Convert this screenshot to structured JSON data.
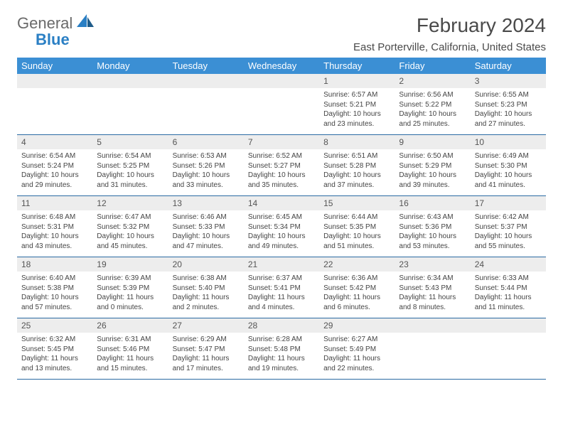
{
  "logo": {
    "text1": "General",
    "text2": "Blue"
  },
  "title": "February 2024",
  "location": "East Porterville, California, United States",
  "headerColor": "#3b8fd4",
  "dayNumBg": "#ededed",
  "borderColor": "#2b6aa3",
  "weekdays": [
    "Sunday",
    "Monday",
    "Tuesday",
    "Wednesday",
    "Thursday",
    "Friday",
    "Saturday"
  ],
  "weeks": [
    [
      null,
      null,
      null,
      null,
      {
        "n": "1",
        "sr": "6:57 AM",
        "ss": "5:21 PM",
        "dl": "10 hours and 23 minutes."
      },
      {
        "n": "2",
        "sr": "6:56 AM",
        "ss": "5:22 PM",
        "dl": "10 hours and 25 minutes."
      },
      {
        "n": "3",
        "sr": "6:55 AM",
        "ss": "5:23 PM",
        "dl": "10 hours and 27 minutes."
      }
    ],
    [
      {
        "n": "4",
        "sr": "6:54 AM",
        "ss": "5:24 PM",
        "dl": "10 hours and 29 minutes."
      },
      {
        "n": "5",
        "sr": "6:54 AM",
        "ss": "5:25 PM",
        "dl": "10 hours and 31 minutes."
      },
      {
        "n": "6",
        "sr": "6:53 AM",
        "ss": "5:26 PM",
        "dl": "10 hours and 33 minutes."
      },
      {
        "n": "7",
        "sr": "6:52 AM",
        "ss": "5:27 PM",
        "dl": "10 hours and 35 minutes."
      },
      {
        "n": "8",
        "sr": "6:51 AM",
        "ss": "5:28 PM",
        "dl": "10 hours and 37 minutes."
      },
      {
        "n": "9",
        "sr": "6:50 AM",
        "ss": "5:29 PM",
        "dl": "10 hours and 39 minutes."
      },
      {
        "n": "10",
        "sr": "6:49 AM",
        "ss": "5:30 PM",
        "dl": "10 hours and 41 minutes."
      }
    ],
    [
      {
        "n": "11",
        "sr": "6:48 AM",
        "ss": "5:31 PM",
        "dl": "10 hours and 43 minutes."
      },
      {
        "n": "12",
        "sr": "6:47 AM",
        "ss": "5:32 PM",
        "dl": "10 hours and 45 minutes."
      },
      {
        "n": "13",
        "sr": "6:46 AM",
        "ss": "5:33 PM",
        "dl": "10 hours and 47 minutes."
      },
      {
        "n": "14",
        "sr": "6:45 AM",
        "ss": "5:34 PM",
        "dl": "10 hours and 49 minutes."
      },
      {
        "n": "15",
        "sr": "6:44 AM",
        "ss": "5:35 PM",
        "dl": "10 hours and 51 minutes."
      },
      {
        "n": "16",
        "sr": "6:43 AM",
        "ss": "5:36 PM",
        "dl": "10 hours and 53 minutes."
      },
      {
        "n": "17",
        "sr": "6:42 AM",
        "ss": "5:37 PM",
        "dl": "10 hours and 55 minutes."
      }
    ],
    [
      {
        "n": "18",
        "sr": "6:40 AM",
        "ss": "5:38 PM",
        "dl": "10 hours and 57 minutes."
      },
      {
        "n": "19",
        "sr": "6:39 AM",
        "ss": "5:39 PM",
        "dl": "11 hours and 0 minutes."
      },
      {
        "n": "20",
        "sr": "6:38 AM",
        "ss": "5:40 PM",
        "dl": "11 hours and 2 minutes."
      },
      {
        "n": "21",
        "sr": "6:37 AM",
        "ss": "5:41 PM",
        "dl": "11 hours and 4 minutes."
      },
      {
        "n": "22",
        "sr": "6:36 AM",
        "ss": "5:42 PM",
        "dl": "11 hours and 6 minutes."
      },
      {
        "n": "23",
        "sr": "6:34 AM",
        "ss": "5:43 PM",
        "dl": "11 hours and 8 minutes."
      },
      {
        "n": "24",
        "sr": "6:33 AM",
        "ss": "5:44 PM",
        "dl": "11 hours and 11 minutes."
      }
    ],
    [
      {
        "n": "25",
        "sr": "6:32 AM",
        "ss": "5:45 PM",
        "dl": "11 hours and 13 minutes."
      },
      {
        "n": "26",
        "sr": "6:31 AM",
        "ss": "5:46 PM",
        "dl": "11 hours and 15 minutes."
      },
      {
        "n": "27",
        "sr": "6:29 AM",
        "ss": "5:47 PM",
        "dl": "11 hours and 17 minutes."
      },
      {
        "n": "28",
        "sr": "6:28 AM",
        "ss": "5:48 PM",
        "dl": "11 hours and 19 minutes."
      },
      {
        "n": "29",
        "sr": "6:27 AM",
        "ss": "5:49 PM",
        "dl": "11 hours and 22 minutes."
      },
      null,
      null
    ]
  ],
  "labels": {
    "sunrise": "Sunrise:",
    "sunset": "Sunset:",
    "daylight": "Daylight:"
  }
}
